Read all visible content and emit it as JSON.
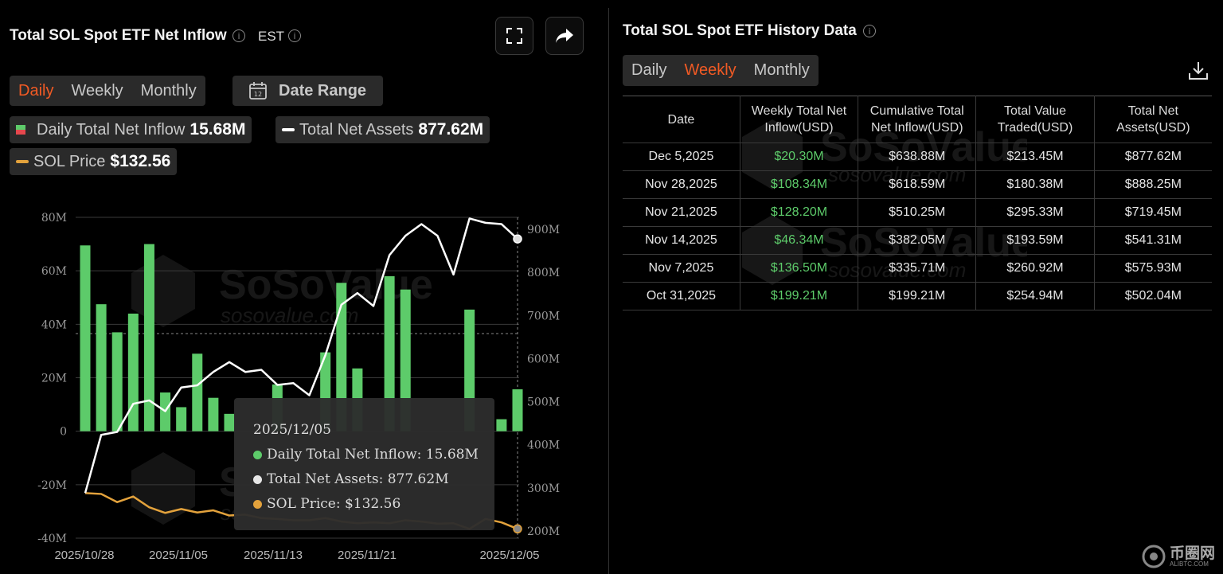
{
  "left": {
    "title": "Total SOL Spot ETF Net Inflow",
    "timezone": "EST",
    "period_tabs": [
      "Daily",
      "Weekly",
      "Monthly"
    ],
    "active_period": "Daily",
    "date_range_label": "Date Range",
    "calendar_icon_text": "12",
    "legend": {
      "inflow_label": "Daily Total Net Inflow",
      "inflow_value": "15.68M",
      "assets_label": "Total Net Assets",
      "assets_value": "877.62M",
      "price_label": "SOL Price",
      "price_value": "$132.56"
    },
    "tooltip": {
      "date": "2025/12/05",
      "inflow": "Daily Total Net Inflow: 15.68M",
      "assets": "Total Net Assets: 877.62M",
      "price": "SOL Price: $132.56"
    },
    "watermark": {
      "brand": "SoSoValue",
      "site": "sosovalue.com"
    }
  },
  "colors": {
    "inflow_positive": "#5dcb6a",
    "inflow_negative": "#e5484d",
    "assets_line": "#ffffff",
    "price_line": "#e3a23c",
    "accent": "#f15a24"
  },
  "chart_data": {
    "type": "bar",
    "y_left_ticks": [
      "80M",
      "60M",
      "40M",
      "20M",
      "0",
      "-20M",
      "-40M"
    ],
    "y_right_ticks": [
      "900M",
      "800M",
      "700M",
      "600M",
      "500M",
      "400M",
      "300M",
      "200M"
    ],
    "x_tick_labels": [
      "2025/10/28",
      "2025/11/05",
      "2025/11/13",
      "2025/11/21",
      "2025/12/05"
    ],
    "y_left_range": [
      -40,
      80
    ],
    "y_right_range": [
      200,
      925
    ],
    "series": [
      {
        "name": "Daily Total Net Inflow",
        "type": "bar",
        "axis": "left",
        "unit": "M",
        "values": [
          69.5,
          47.5,
          37,
          44,
          70,
          14.5,
          9,
          29,
          12.5,
          6.5,
          null,
          null,
          17.5,
          null,
          null,
          29.5,
          55.5,
          23.5,
          null,
          58,
          53,
          null,
          null,
          null,
          45.5,
          null,
          4.5,
          15.68
        ]
      },
      {
        "name": "Total Net Assets",
        "type": "line",
        "axis": "right",
        "unit": "M",
        "values": [
          288,
          423,
          430,
          495,
          503,
          478,
          533,
          538,
          569,
          592,
          569,
          574,
          539,
          543,
          515,
          608,
          725,
          752,
          722,
          840,
          885,
          912,
          885,
          795,
          925,
          915,
          912,
          877.62
        ]
      },
      {
        "name": "SOL Price",
        "type": "line",
        "axis": "right",
        "unit": "USD",
        "values": [
          288,
          286,
          267,
          280,
          255,
          242,
          251,
          243,
          248,
          236,
          238,
          230,
          228,
          225,
          225,
          230,
          222,
          218,
          220,
          218,
          225,
          222,
          217,
          218,
          205,
          228,
          220,
          205
        ]
      }
    ]
  },
  "right": {
    "title": "Total SOL Spot ETF History Data",
    "period_tabs": [
      "Daily",
      "Weekly",
      "Monthly"
    ],
    "active_period": "Weekly",
    "table": {
      "headers": [
        [
          "Date"
        ],
        [
          "Weekly Total Net",
          "Inflow(USD)"
        ],
        [
          "Cumulative Total",
          "Net Inflow(USD)"
        ],
        [
          "Total Value",
          "Traded(USD)"
        ],
        [
          "Total Net",
          "Assets(USD)"
        ]
      ],
      "rows": [
        [
          "Dec 5,2025",
          "$20.30M",
          "$638.88M",
          "$213.45M",
          "$877.62M"
        ],
        [
          "Nov 28,2025",
          "$108.34M",
          "$618.59M",
          "$180.38M",
          "$888.25M"
        ],
        [
          "Nov 21,2025",
          "$128.20M",
          "$510.25M",
          "$295.33M",
          "$719.45M"
        ],
        [
          "Nov 14,2025",
          "$46.34M",
          "$382.05M",
          "$193.59M",
          "$541.31M"
        ],
        [
          "Nov 7,2025",
          "$136.50M",
          "$335.71M",
          "$260.92M",
          "$575.93M"
        ],
        [
          "Oct 31,2025",
          "$199.21M",
          "$199.21M",
          "$254.94M",
          "$502.04M"
        ]
      ]
    }
  },
  "corner_logo": {
    "text": "币圈网",
    "sub": "ALIBTC.COM"
  }
}
